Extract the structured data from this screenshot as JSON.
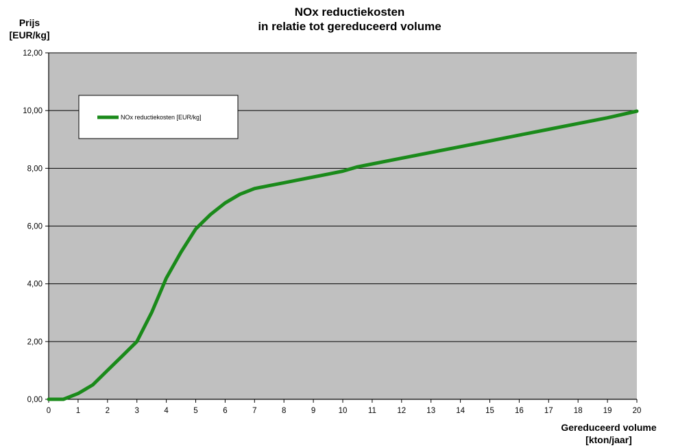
{
  "chart_data": {
    "type": "line",
    "title": [
      "NOx reductiekosten",
      "in relatie tot gereduceerd volume"
    ],
    "ylabel": [
      "Prijs",
      "[EUR/kg]"
    ],
    "xlabel": [
      "Gereduceerd volume",
      "[kton/jaar]"
    ],
    "xlim": [
      0,
      20
    ],
    "ylim": [
      0,
      12
    ],
    "x_ticks": [
      "0",
      "1",
      "2",
      "3",
      "4",
      "5",
      "6",
      "7",
      "8",
      "9",
      "10",
      "11",
      "12",
      "13",
      "14",
      "15",
      "16",
      "17",
      "18",
      "19",
      "20"
    ],
    "y_ticks": [
      "0,00",
      "2,00",
      "4,00",
      "6,00",
      "8,00",
      "10,00",
      "12,00"
    ],
    "grid": "horizontal",
    "legend_position": "top-left",
    "plot_background": "#c0c0c0",
    "series": [
      {
        "name": "NOx reductiekosten [EUR/kg]",
        "color": "#1a8a1a",
        "x": [
          0,
          0.5,
          1,
          1.5,
          2,
          2.5,
          3,
          3.5,
          4,
          4.5,
          5,
          5.5,
          6,
          6.5,
          7,
          7.5,
          8,
          8.5,
          9,
          9.5,
          10,
          10.5,
          11,
          12,
          13,
          14,
          15,
          16,
          17,
          18,
          19,
          20
        ],
        "y": [
          0,
          0,
          0.2,
          0.5,
          1.0,
          1.5,
          2.0,
          3.0,
          4.2,
          5.1,
          5.9,
          6.4,
          6.8,
          7.1,
          7.3,
          7.4,
          7.5,
          7.6,
          7.7,
          7.8,
          7.9,
          8.05,
          8.15,
          8.35,
          8.55,
          8.75,
          8.95,
          9.15,
          9.35,
          9.55,
          9.75,
          9.98
        ]
      }
    ]
  }
}
